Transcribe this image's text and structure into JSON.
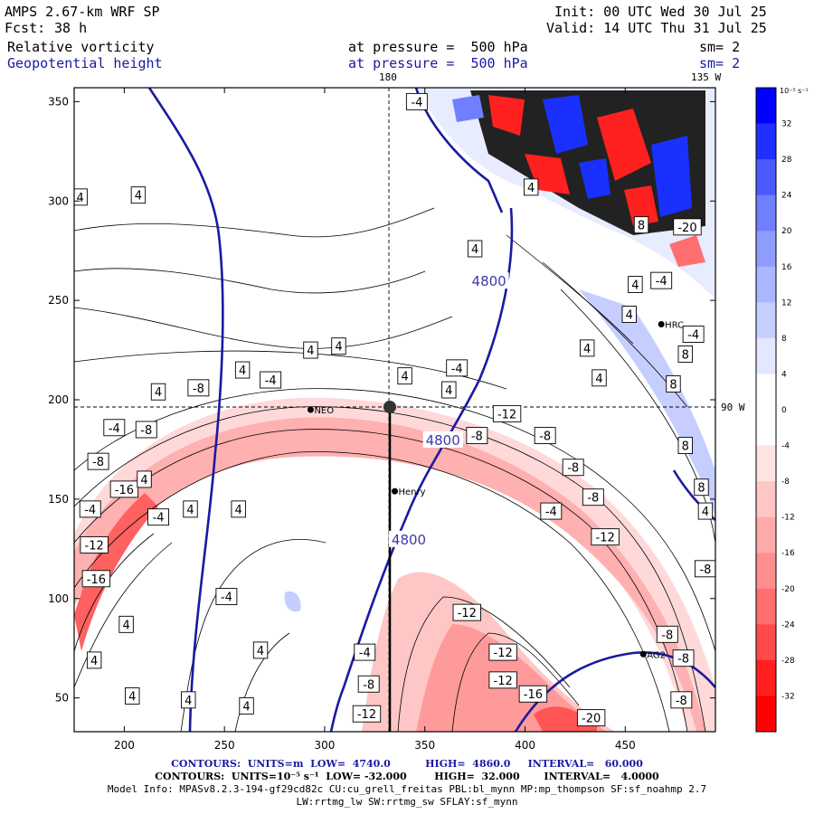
{
  "header": {
    "model": "AMPS 2.67-km WRF SP",
    "fcst_label": "Fcst:",
    "fcst_value": "38 h",
    "init": "Init: 00 UTC Wed 30 Jul 25",
    "valid": "Valid: 14 UTC Thu 31 Jul 25",
    "field1": "Relative vorticity",
    "field1_pressure": "at pressure =  500 hPa",
    "field1_sm": "sm= 2",
    "field2": "Geopotential height",
    "field2_pressure": "at pressure =  500 hPa",
    "field2_sm": "sm= 2"
  },
  "map": {
    "meridian_180": "180",
    "meridian_135w": "135 W",
    "parallel_90w": "90 W",
    "x_ticks": [
      200,
      250,
      300,
      350,
      400,
      450
    ],
    "y_ticks": [
      50,
      100,
      150,
      200,
      250,
      300,
      350
    ],
    "x_range": [
      175,
      495
    ],
    "y_range": [
      33,
      357
    ],
    "stations": [
      {
        "name": "NEO",
        "x": 293,
        "y": 195
      },
      {
        "name": "Henry",
        "x": 335,
        "y": 154
      },
      {
        "name": "HRC",
        "x": 468,
        "y": 238
      },
      {
        "name": "AG2",
        "x": 459,
        "y": 72
      }
    ],
    "height_contour_labels": [
      {
        "text": "4800",
        "x": 382,
        "y": 260
      },
      {
        "text": "4800",
        "x": 359,
        "y": 180
      },
      {
        "text": "4800",
        "x": 342,
        "y": 130
      }
    ],
    "vorticity_labels": [
      {
        "t": "4",
        "x": 178,
        "y": 302
      },
      {
        "t": "4",
        "x": 207,
        "y": 303
      },
      {
        "t": "4",
        "x": 307,
        "y": 227
      },
      {
        "t": "-4",
        "x": 346,
        "y": 350
      },
      {
        "t": "4",
        "x": 259,
        "y": 215
      },
      {
        "t": "4",
        "x": 293,
        "y": 225
      },
      {
        "t": "-4",
        "x": 273,
        "y": 210
      },
      {
        "t": "-8",
        "x": 237,
        "y": 206
      },
      {
        "t": "4",
        "x": 217,
        "y": 204
      },
      {
        "t": "4",
        "x": 340,
        "y": 212
      },
      {
        "t": "4",
        "x": 362,
        "y": 205
      },
      {
        "t": "-4",
        "x": 195,
        "y": 186
      },
      {
        "t": "-8",
        "x": 211,
        "y": 185
      },
      {
        "t": "-8",
        "x": 187,
        "y": 169
      },
      {
        "t": "-16",
        "x": 200,
        "y": 155
      },
      {
        "t": "-4",
        "x": 183,
        "y": 145
      },
      {
        "t": "-4",
        "x": 217,
        "y": 141
      },
      {
        "t": "4",
        "x": 210,
        "y": 160
      },
      {
        "t": "4",
        "x": 233,
        "y": 145
      },
      {
        "t": "4",
        "x": 257,
        "y": 145
      },
      {
        "t": "-12",
        "x": 185,
        "y": 127
      },
      {
        "t": "-16",
        "x": 186,
        "y": 110
      },
      {
        "t": "-4",
        "x": 251,
        "y": 101
      },
      {
        "t": "4",
        "x": 201,
        "y": 87
      },
      {
        "t": "4",
        "x": 185,
        "y": 69
      },
      {
        "t": "4",
        "x": 268,
        "y": 74
      },
      {
        "t": "4",
        "x": 232,
        "y": 49
      },
      {
        "t": "4",
        "x": 261,
        "y": 46
      },
      {
        "t": "4",
        "x": 204,
        "y": 51
      },
      {
        "t": "-4",
        "x": 320,
        "y": 73
      },
      {
        "t": "-8",
        "x": 322,
        "y": 57
      },
      {
        "t": "-12",
        "x": 321,
        "y": 42
      },
      {
        "t": "-12",
        "x": 371,
        "y": 93
      },
      {
        "t": "-12",
        "x": 389,
        "y": 73
      },
      {
        "t": "-12",
        "x": 389,
        "y": 59
      },
      {
        "t": "-16",
        "x": 404,
        "y": 52
      },
      {
        "t": "-20",
        "x": 433,
        "y": 40
      },
      {
        "t": "-12",
        "x": 391,
        "y": 193
      },
      {
        "t": "-8",
        "x": 376,
        "y": 182
      },
      {
        "t": "-8",
        "x": 410,
        "y": 182
      },
      {
        "t": "-8",
        "x": 424,
        "y": 166
      },
      {
        "t": "-8",
        "x": 434,
        "y": 151
      },
      {
        "t": "-4",
        "x": 413,
        "y": 144
      },
      {
        "t": "-12",
        "x": 440,
        "y": 131
      },
      {
        "t": "-8",
        "x": 471,
        "y": 82
      },
      {
        "t": "-8",
        "x": 479,
        "y": 70
      },
      {
        "t": "-8",
        "x": 478,
        "y": 49
      },
      {
        "t": "-8",
        "x": 490,
        "y": 115
      },
      {
        "t": "-4",
        "x": 366,
        "y": 216
      },
      {
        "t": "4",
        "x": 431,
        "y": 226
      },
      {
        "t": "4",
        "x": 452,
        "y": 243
      },
      {
        "t": "4",
        "x": 437,
        "y": 211
      },
      {
        "t": "8",
        "x": 474,
        "y": 208
      },
      {
        "t": "8",
        "x": 480,
        "y": 223
      },
      {
        "t": "8",
        "x": 480,
        "y": 177
      },
      {
        "t": "-4",
        "x": 468,
        "y": 260
      },
      {
        "t": "-4",
        "x": 484,
        "y": 233
      },
      {
        "t": "8",
        "x": 458,
        "y": 288
      },
      {
        "t": "-20",
        "x": 481,
        "y": 287
      },
      {
        "t": "4",
        "x": 375,
        "y": 276
      },
      {
        "t": "4",
        "x": 403,
        "y": 307
      },
      {
        "t": "4",
        "x": 455,
        "y": 258
      },
      {
        "t": "8",
        "x": 488,
        "y": 156
      },
      {
        "t": "4",
        "x": 490,
        "y": 144
      }
    ]
  },
  "colorbar": {
    "unit": "10⁻⁵ s⁻¹",
    "levels": [
      32,
      28,
      24,
      20,
      16,
      12,
      8,
      4,
      0,
      -4,
      -8,
      -12,
      -16,
      -20,
      -24,
      -28,
      -32
    ],
    "colors": [
      "#0000ff",
      "#1f2fff",
      "#4a5aff",
      "#6f7fff",
      "#8f9dff",
      "#aab6ff",
      "#c6ceff",
      "#e3e7ff",
      "#ffffff",
      "#ffffff",
      "#ffe3e3",
      "#ffc6c6",
      "#ffaaaa",
      "#ff8f8f",
      "#ff6f6f",
      "#ff4a4a",
      "#ff1f1f",
      "#ff0000"
    ]
  },
  "footer": {
    "contours1_label": "CONTOURS:",
    "contours1_units": "UNITS=m",
    "contours1_low": "LOW=  4740.0",
    "contours1_high": "HIGH=  4860.0",
    "contours1_interval": "INTERVAL=   60.000",
    "contours2_label": "CONTOURS:",
    "contours2_units": "UNITS=10⁻⁵ s⁻¹",
    "contours2_low": "LOW= -32.000",
    "contours2_high": "HIGH=  32.000",
    "contours2_interval": "INTERVAL=   4.0000",
    "model_info": "Model Info: MPASv8.2.3-194-gf29cd82c CU:cu_grell_freitas PBL:bl_mynn MP:mp_thompson SF:sf_noahmp 2.7",
    "model_info2": "LW:rrtmg_lw SW:rrtmg_sw SFLAY:sf_mynn"
  }
}
